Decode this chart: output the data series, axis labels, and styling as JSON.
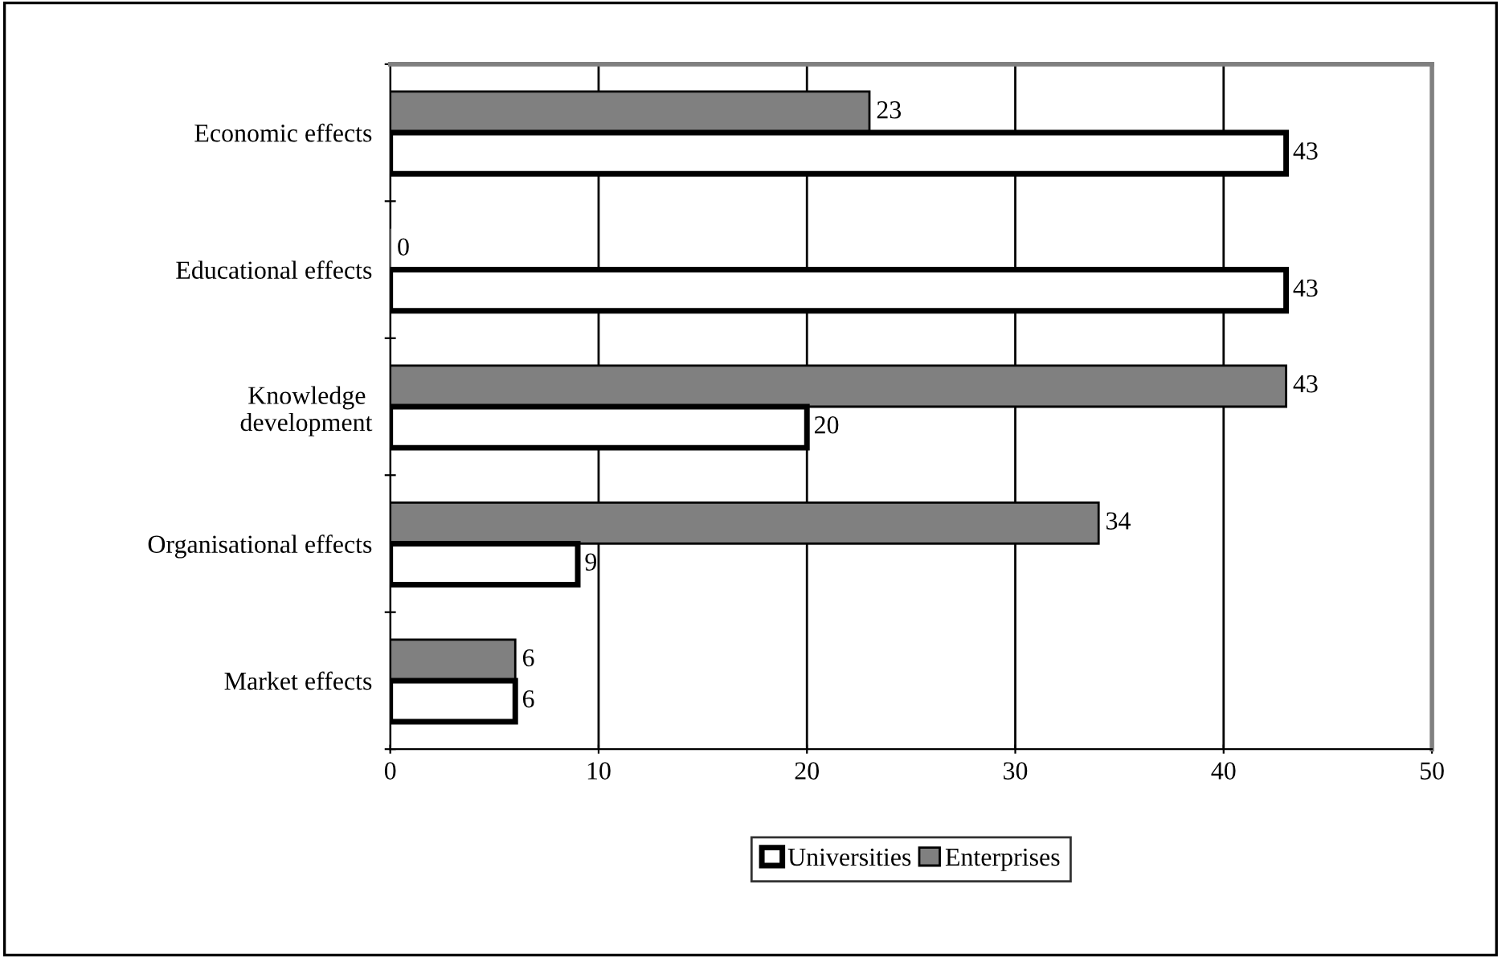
{
  "chart_data": {
    "type": "bar",
    "orientation": "horizontal",
    "categories": [
      "Economic effects",
      "Educational effects",
      "Knowledge \ndevelopment",
      "Organisational effects",
      "Market effects"
    ],
    "series": [
      {
        "name": "Enterprises",
        "color": "#808080",
        "values": [
          23,
          0,
          43,
          34,
          6
        ]
      },
      {
        "name": "Universities",
        "color": "#ffffff",
        "values": [
          43,
          43,
          20,
          9,
          6
        ]
      }
    ],
    "xlim": [
      0,
      50
    ],
    "xticks": [
      0,
      10,
      20,
      30,
      40,
      50
    ],
    "grid": "x",
    "legend": "bottom",
    "data_labels": true
  }
}
